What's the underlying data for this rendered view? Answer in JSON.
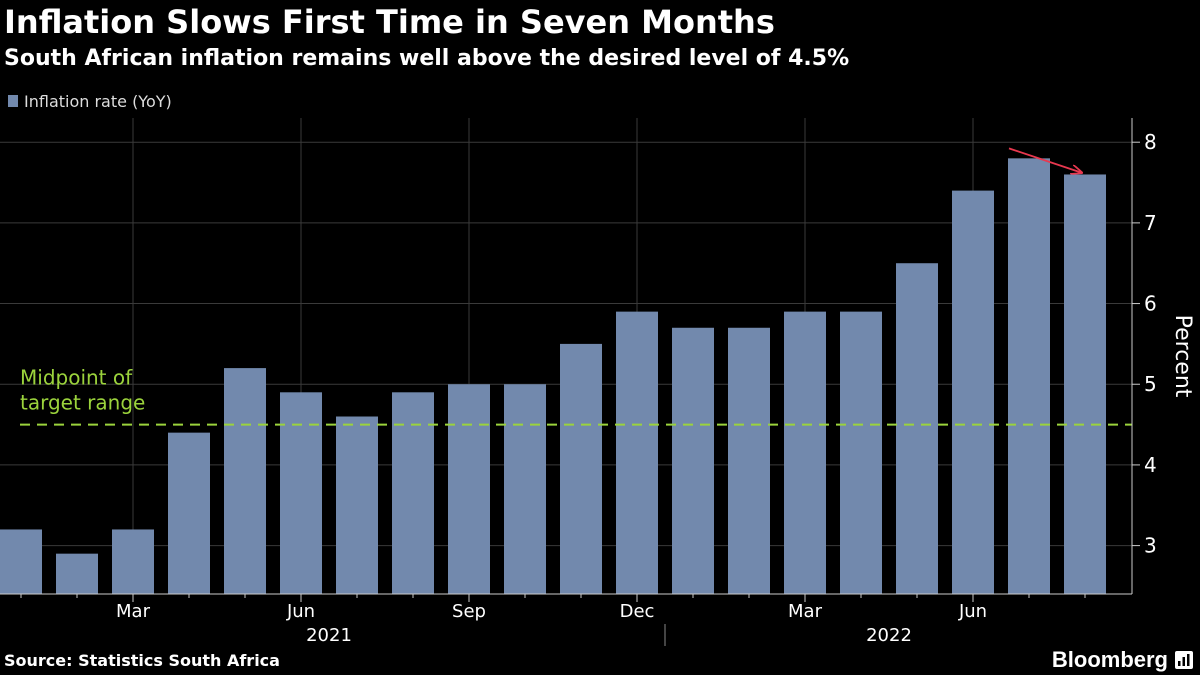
{
  "header": {
    "title": "Inflation Slows First Time in Seven Months",
    "subtitle": "South African inflation remains well above the desired level of 4.5%"
  },
  "footer": {
    "source": "Source: Statistics South Africa",
    "brand": "Bloomberg",
    "brand_icon": "bloomberg-terminal-icon"
  },
  "colors": {
    "background": "#000000",
    "bar": "#7289ad",
    "grid": "#3a3a3a",
    "reference_line": "#9bd33c",
    "annotation_arrow": "#e8384f",
    "text": "#ffffff"
  },
  "chart_data": {
    "type": "bar",
    "categories": [
      "Jan 2021",
      "Feb 2021",
      "Mar 2021",
      "Apr 2021",
      "May 2021",
      "Jun 2021",
      "Jul 2021",
      "Aug 2021",
      "Sep 2021",
      "Oct 2021",
      "Nov 2021",
      "Dec 2021",
      "Jan 2022",
      "Feb 2022",
      "Mar 2022",
      "Apr 2022",
      "May 2022",
      "Jun 2022",
      "Jul 2022",
      "Aug 2022"
    ],
    "series": [
      {
        "name": "Inflation rate (YoY)",
        "values": [
          3.2,
          2.9,
          3.2,
          4.4,
          5.2,
          4.9,
          4.6,
          4.9,
          5.0,
          5.0,
          5.5,
          5.9,
          5.7,
          5.7,
          5.9,
          5.9,
          6.5,
          7.4,
          7.8,
          7.6
        ]
      }
    ],
    "xtick_labels": [
      {
        "label": "Mar",
        "index": 2
      },
      {
        "label": "Jun",
        "index": 5
      },
      {
        "label": "Sep",
        "index": 8
      },
      {
        "label": "Dec",
        "index": 11
      },
      {
        "label": "Mar",
        "index": 14
      },
      {
        "label": "Jun",
        "index": 17
      }
    ],
    "year_labels": [
      {
        "label": "2021",
        "index": 5.5
      },
      {
        "label": "2022",
        "index": 15.5
      }
    ],
    "ylabel": "Percent",
    "ylim": [
      2.4,
      8.3
    ],
    "yticks": [
      3,
      4,
      5,
      6,
      7,
      8
    ],
    "y_axis_side": "right",
    "grid": true,
    "legend_position": "top-left",
    "reference_line": {
      "value": 4.5,
      "label_lines": [
        "Midpoint of",
        "target range"
      ],
      "style": "dashed"
    },
    "annotation": {
      "type": "arrow",
      "from_index": 18,
      "to_index": 19,
      "description": "decline from Jul to Aug"
    }
  }
}
